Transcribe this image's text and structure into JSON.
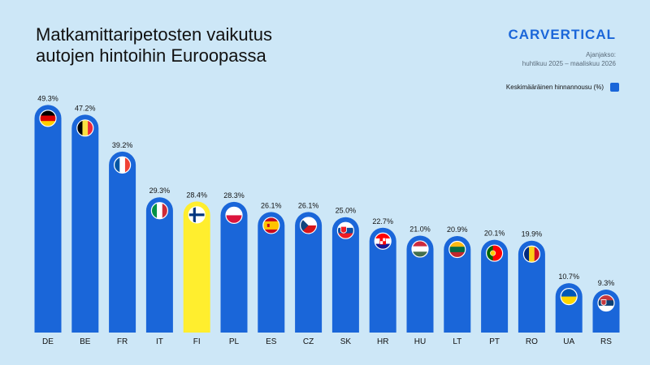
{
  "title": {
    "line1": "Matkamittaripetosten vaikutus",
    "line2": "autojen hintoihin Euroopassa"
  },
  "brand": "CARVERTICAL",
  "period": {
    "label": "Ajanjakso:",
    "range": "huhtikuu 2025 – maaliskuu 2026"
  },
  "colors": {
    "bar": "#1a66d9",
    "highlight": "#ffee2e",
    "background": "#cde7f7"
  },
  "chart_data": {
    "type": "bar",
    "title": "Matkamittaripetosten vaikutus autojen hintoihin Euroopassa",
    "categories": [
      "DE",
      "BE",
      "FR",
      "IT",
      "FI",
      "PL",
      "ES",
      "CZ",
      "SK",
      "HR",
      "HU",
      "LT",
      "PT",
      "RO",
      "UA",
      "RS"
    ],
    "series": [
      {
        "name": "Keskimääräinen hinnannousu (%)",
        "values": [
          49.3,
          47.2,
          39.2,
          29.3,
          28.4,
          28.3,
          26.1,
          26.1,
          25.0,
          22.7,
          21.0,
          20.9,
          20.1,
          19.9,
          10.7,
          9.3
        ]
      }
    ],
    "data_labels": [
      "49.3%",
      "47.2%",
      "39.2%",
      "29.3%",
      "28.4%",
      "28.3%",
      "26.1%",
      "26.1%",
      "25.0%",
      "22.7%",
      "21.0%",
      "20.9%",
      "20.1%",
      "19.9%",
      "10.7%",
      "9.3%"
    ],
    "highlight_category": "FI",
    "xlabel": "",
    "ylabel": "",
    "ylim": [
      0,
      52
    ],
    "grid": false,
    "legend": "top-right",
    "flags": {
      "DE": "flag-germany-icon",
      "BE": "flag-belgium-icon",
      "FR": "flag-france-icon",
      "IT": "flag-italy-icon",
      "FI": "flag-finland-icon",
      "PL": "flag-poland-icon",
      "ES": "flag-spain-icon",
      "CZ": "flag-czechia-icon",
      "SK": "flag-slovakia-icon",
      "HR": "flag-croatia-icon",
      "HU": "flag-hungary-icon",
      "LT": "flag-lithuania-icon",
      "PT": "flag-portugal-icon",
      "RO": "flag-romania-icon",
      "UA": "flag-ukraine-icon",
      "RS": "flag-serbia-icon"
    }
  }
}
